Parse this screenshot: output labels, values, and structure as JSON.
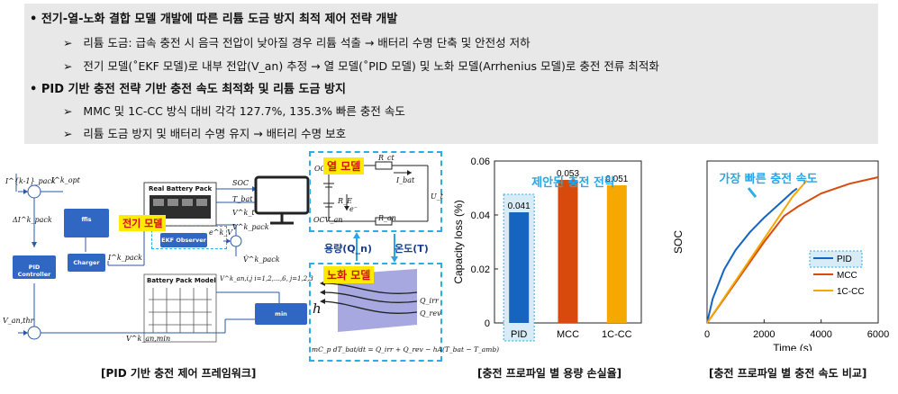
{
  "summary": {
    "bullet1": "전기-열-노화 결합 모델 개발에 따른 리튬 도금 방지 최적 제어 전략 개발",
    "bullet1_subs": [
      "리튬 도금: 급속 충전 시 음극 전압이 낮아질 경우 리튬 석출 → 배터리 수명 단축 및 안전성 저하",
      "전기 모델(˚EKF 모델)로 내부 전압(V_an) 추정 → 열 모델(˚PID 모델) 및 노화 모델(Arrhenius 모델)로 충전 전류 최적화"
    ],
    "bullet2": "PID 기반 충전 전략 기반 충전 속도 최적화 및 리튬 도금 방지",
    "bullet2_subs": [
      "MMC 및 1C-CC 방식 대비 각각 127.7%, 135.3% 빠른 충전 속도",
      "리튬 도금 방지 및 배터리 수명 유지 → 배터리 수명 보호"
    ]
  },
  "framework": {
    "caption": "[PID 기반 충전 제어 프레임워크]",
    "real_pack": "Real Battery Pack",
    "electric_model": "전기 모델",
    "ekf": "EKF Observer",
    "pid": "PID Controller",
    "charger": "Charger",
    "ffis": "ffis",
    "battery_model": "Battery Pack Model",
    "optimizer": "min",
    "labels": {
      "i_pack": "I^{k-1}_pack",
      "i_opt": "I^k_opt",
      "delta_i": "ΔI^k_pack",
      "soc": "SOC",
      "tbat": "T_bat",
      "vt": "V^k_t",
      "vpack": "V^k_pack",
      "vhat": "V̂^k_pack",
      "van": "V^k_an,i,j   i=1,2,…,6, j=1,2,3",
      "vanthr": "V_an,thr",
      "vanmin": "V^k_an,min",
      "ipack2": "I^k_pack",
      "eps": "e^k_V"
    }
  },
  "circuit": {
    "heat_model": "열 모델",
    "capacity": "용량(Q_n)",
    "temperature": "온도(T)",
    "aging_model": "노화 모델",
    "h": "h",
    "qirr": "Q_irr",
    "qrev": "Q_rev",
    "equation": "mC_p dT_bat/dt = Q_irr + Q_rev − hA(T_bat − T_amb)",
    "ocv": "OCV",
    "ocv_an": "OCV_an",
    "re": "R_E",
    "rct": "R_ct",
    "ran": "R_an",
    "ibat": "I_bat",
    "vcell": "U_t",
    "e_minus": "e⁻"
  },
  "chart1": {
    "caption": "[충전 프로파일 별 용량 손실율]",
    "annotation": "제안된 충전 전략",
    "chart_data": {
      "type": "bar",
      "categories": [
        "PID",
        "MCC",
        "1C-CC"
      ],
      "values": [
        0.041,
        0.053,
        0.051
      ],
      "data_labels": [
        "0.041",
        "0.053",
        "0.051"
      ],
      "colors": [
        "#1565c0",
        "#d84a0c",
        "#f5a800"
      ],
      "ylabel": "Capacity loss (%)",
      "ylim": [
        0,
        0.06
      ],
      "yticks": [
        "0",
        "0.02",
        "0.04",
        "0.06"
      ]
    }
  },
  "chart2": {
    "caption": "[충전 프로파일 별 충전 속도 비교]",
    "annotation": "가장 빠른 충전 속도",
    "chart_data": {
      "type": "line",
      "xlabel": "Time (s)",
      "ylabel": "SOC",
      "xlim": [
        0,
        6000
      ],
      "xticks": [
        "0",
        "2000",
        "4000",
        "6000"
      ],
      "series": [
        {
          "name": "PID",
          "color": "#1565c0",
          "x": [
            0,
            200,
            600,
            1000,
            1500,
            2000,
            2500,
            3000,
            3150
          ],
          "y": [
            0.0,
            0.15,
            0.33,
            0.45,
            0.56,
            0.65,
            0.73,
            0.81,
            0.83
          ]
        },
        {
          "name": "MCC",
          "color": "#d84a0c",
          "x": [
            0,
            1000,
            2000,
            2700,
            3200,
            4000,
            5000,
            6000
          ],
          "y": [
            0.0,
            0.25,
            0.5,
            0.66,
            0.72,
            0.8,
            0.86,
            0.9
          ]
        },
        {
          "name": "1C-CC",
          "color": "#f5a800",
          "x": [
            0,
            1000,
            2000,
            3000,
            3500
          ],
          "y": [
            0.0,
            0.26,
            0.52,
            0.78,
            0.88
          ]
        }
      ]
    }
  }
}
